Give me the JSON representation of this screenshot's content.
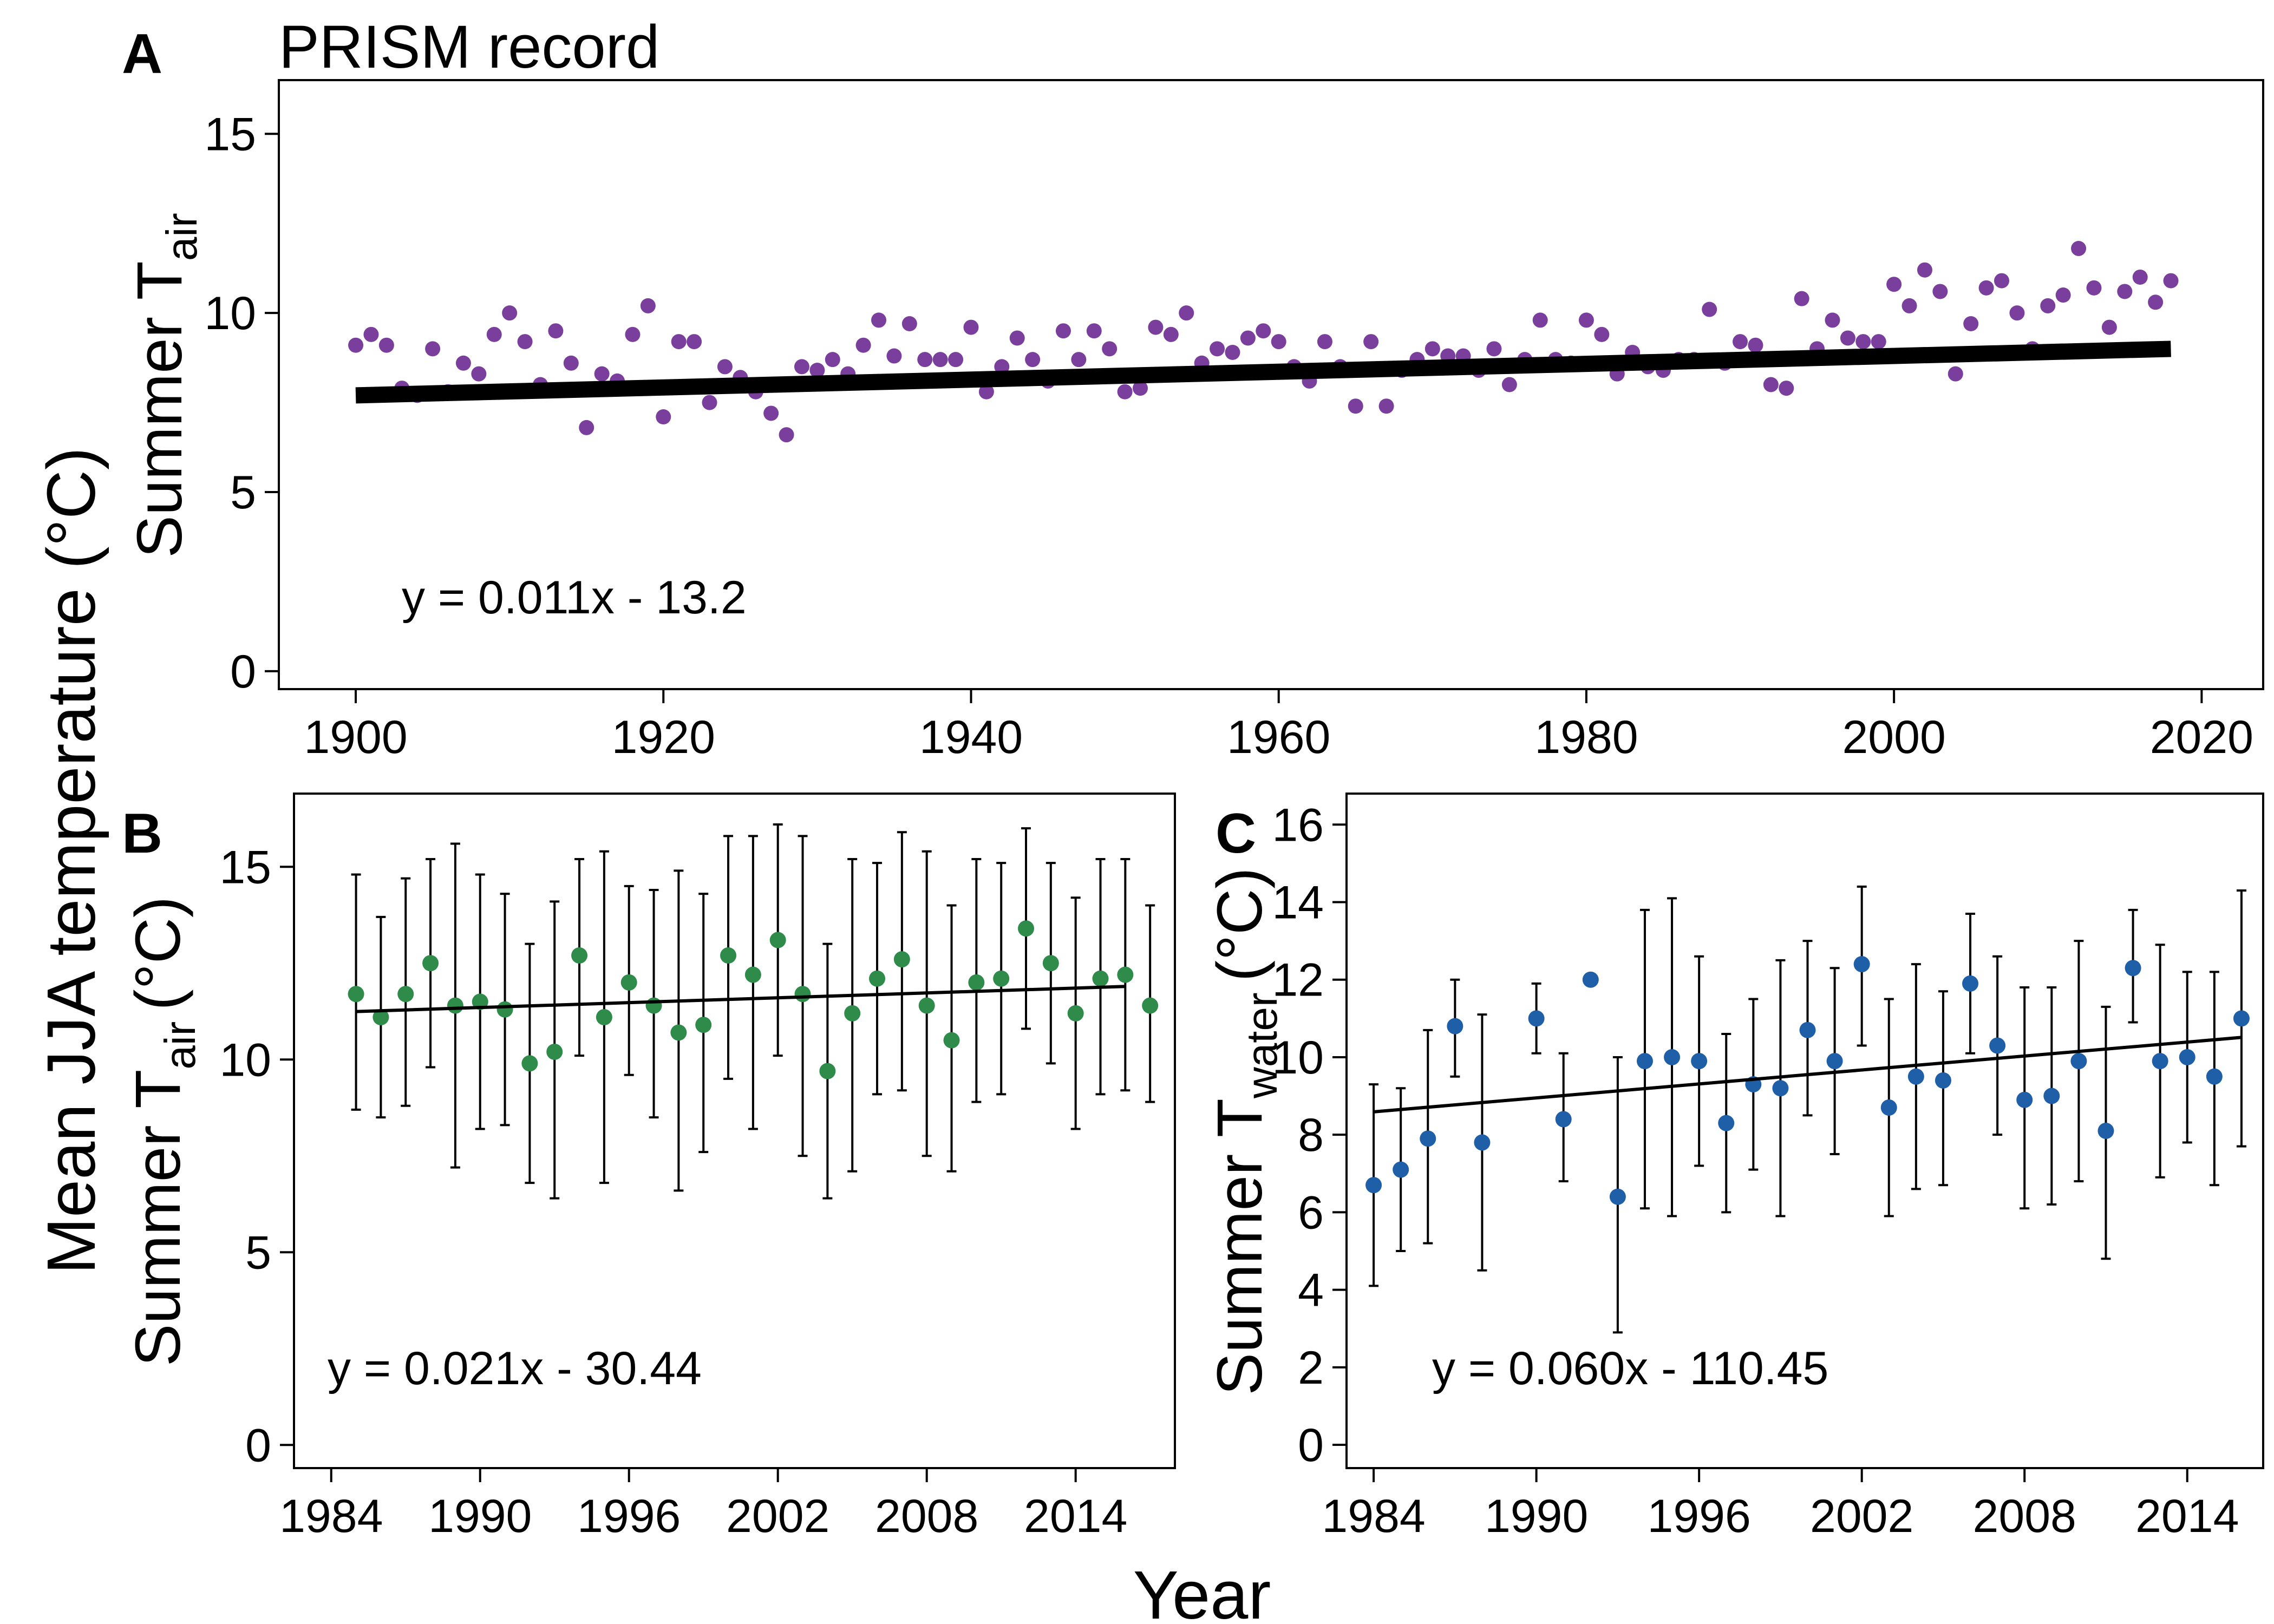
{
  "figure": {
    "global_ylabel": "Mean JJA temperature (°C)",
    "global_xlabel": "Year"
  },
  "chart_data": [
    {
      "panel": "A",
      "title": "PRISM record",
      "type": "scatter",
      "ylabel": {
        "main": "Summer T",
        "sub": "air"
      },
      "xlim": [
        1895,
        2024
      ],
      "ylim": [
        -0.5,
        16.5
      ],
      "xticks": [
        1900,
        1920,
        1940,
        1960,
        1980,
        2000,
        2020
      ],
      "yticks": [
        0,
        5,
        10,
        15
      ],
      "point_color": "#7a3e9d",
      "fit": {
        "slope": 0.011,
        "intercept": -13.2,
        "x_range": [
          1900,
          2018
        ],
        "color": "#000000"
      },
      "equation": "y = 0.011x - 13.2",
      "x": [
        1900,
        1901,
        1902,
        1903,
        1904,
        1905,
        1906,
        1907,
        1908,
        1909,
        1910,
        1911,
        1912,
        1913,
        1914,
        1915,
        1916,
        1917,
        1918,
        1919,
        1920,
        1921,
        1922,
        1923,
        1924,
        1925,
        1926,
        1927,
        1928,
        1929,
        1930,
        1931,
        1932,
        1933,
        1934,
        1935,
        1936,
        1937,
        1938,
        1939,
        1940,
        1941,
        1942,
        1943,
        1944,
        1945,
        1946,
        1947,
        1948,
        1949,
        1950,
        1951,
        1952,
        1953,
        1954,
        1955,
        1956,
        1957,
        1958,
        1959,
        1960,
        1961,
        1962,
        1963,
        1964,
        1965,
        1966,
        1967,
        1968,
        1969,
        1970,
        1971,
        1972,
        1973,
        1974,
        1975,
        1976,
        1977,
        1978,
        1979,
        1980,
        1981,
        1982,
        1983,
        1984,
        1985,
        1986,
        1987,
        1988,
        1989,
        1990,
        1991,
        1992,
        1993,
        1994,
        1995,
        1996,
        1997,
        1998,
        1999,
        2000,
        2001,
        2002,
        2003,
        2004,
        2005,
        2006,
        2007,
        2008,
        2009,
        2010,
        2011,
        2012,
        2013,
        2014,
        2015,
        2016,
        2017,
        2018
      ],
      "y": [
        9.1,
        9.4,
        9.1,
        7.9,
        7.7,
        9.0,
        7.8,
        8.6,
        8.3,
        9.4,
        10.0,
        9.2,
        8.0,
        9.5,
        8.6,
        6.8,
        8.3,
        8.1,
        9.4,
        10.2,
        7.1,
        9.2,
        9.2,
        7.5,
        8.5,
        8.2,
        7.8,
        7.2,
        6.6,
        8.5,
        8.4,
        8.7,
        8.3,
        9.1,
        9.8,
        8.8,
        9.7,
        8.7,
        8.7,
        8.7,
        9.6,
        7.8,
        8.5,
        9.3,
        8.7,
        8.1,
        9.5,
        8.7,
        9.5,
        9.0,
        7.8,
        7.9,
        9.6,
        9.4,
        10.0,
        8.6,
        9.0,
        8.9,
        9.3,
        9.5,
        9.2,
        8.5,
        8.1,
        9.2,
        8.5,
        7.4,
        9.2,
        7.4,
        8.4,
        8.7,
        9.0,
        8.8,
        8.8,
        8.4,
        9.0,
        8.0,
        8.7,
        9.8,
        8.7,
        8.6,
        9.8,
        9.4,
        8.3,
        8.9,
        8.5,
        8.4,
        8.7,
        8.7,
        10.1,
        8.6,
        9.2,
        9.1,
        8.0,
        7.9,
        10.4,
        9.0,
        9.8,
        9.3,
        9.2,
        9.2,
        10.8,
        10.2,
        11.2,
        10.6,
        8.3,
        9.7,
        10.7,
        10.9,
        10.0,
        9.0,
        10.2,
        10.5,
        11.8,
        10.7,
        9.6,
        10.6,
        11.0,
        10.3,
        10.9
      ]
    },
    {
      "panel": "B",
      "type": "scatter",
      "ylabel": {
        "main": "Summer T",
        "sub": "air",
        "unit": "(°C)"
      },
      "xlim": [
        1982.5,
        2018.0
      ],
      "ylim": [
        -0.6,
        16.9
      ],
      "xticks": [
        1984,
        1990,
        1996,
        2002,
        2008,
        2014
      ],
      "yticks": [
        0,
        5,
        10,
        15
      ],
      "point_color": "#2e8b4a",
      "fit": {
        "slope": 0.021,
        "intercept": -30.44,
        "x_range": [
          1985,
          2016
        ],
        "color": "#000000"
      },
      "equation": "y = 0.021x - 30.44",
      "x": [
        1985,
        1986,
        1987,
        1988,
        1989,
        1990,
        1991,
        1992,
        1993,
        1994,
        1995,
        1996,
        1997,
        1998,
        1999,
        2000,
        2001,
        2002,
        2003,
        2004,
        2005,
        2006,
        2007,
        2008,
        2009,
        2010,
        2011,
        2012,
        2013,
        2014,
        2015,
        2016,
        2017
      ],
      "y": [
        11.7,
        11.1,
        11.7,
        12.5,
        11.4,
        11.5,
        11.3,
        9.9,
        10.2,
        12.7,
        11.1,
        12.0,
        11.4,
        10.7,
        10.9,
        12.7,
        12.2,
        13.1,
        11.7,
        9.7,
        11.2,
        12.1,
        12.6,
        11.4,
        10.5,
        12.0,
        12.1,
        13.4,
        12.5,
        11.2,
        12.1,
        12.2,
        11.4
      ],
      "err_low": [
        8.7,
        8.5,
        8.8,
        9.8,
        7.2,
        8.2,
        8.3,
        6.8,
        6.4,
        10.1,
        6.8,
        9.6,
        8.5,
        6.6,
        7.6,
        9.5,
        8.2,
        10.1,
        7.5,
        6.4,
        7.1,
        9.1,
        9.2,
        7.5,
        7.1,
        8.9,
        9.1,
        10.8,
        9.9,
        8.2,
        9.1,
        9.2,
        8.9
      ],
      "err_high": [
        14.8,
        13.7,
        14.7,
        15.2,
        15.6,
        14.8,
        14.3,
        13.0,
        14.1,
        15.2,
        15.4,
        14.5,
        14.4,
        14.9,
        14.3,
        15.8,
        15.8,
        16.1,
        15.8,
        13.0,
        15.2,
        15.1,
        15.9,
        15.4,
        14.0,
        15.2,
        15.1,
        16.0,
        15.1,
        14.2,
        15.2,
        15.2,
        14.0
      ]
    },
    {
      "panel": "C",
      "type": "scatter",
      "ylabel": {
        "main": "Summer T",
        "sub": "water",
        "unit": "(°C)"
      },
      "xlim": [
        1983.0,
        2016.8
      ],
      "ylim": [
        -0.6,
        16.8
      ],
      "xticks": [
        1984,
        1990,
        1996,
        2002,
        2008,
        2014
      ],
      "yticks": [
        0,
        2,
        4,
        6,
        8,
        10,
        12,
        14,
        16
      ],
      "point_color": "#1f5fa8",
      "fit": {
        "slope": 0.06,
        "intercept": -110.45,
        "x_range": [
          1984,
          2016
        ],
        "color": "#000000"
      },
      "equation": "y = 0.060x - 110.45",
      "x": [
        1984,
        1985,
        1986,
        1987,
        1988,
        1990,
        1991,
        1992,
        1993,
        1994,
        1995,
        1996,
        1997,
        1998,
        1999,
        2000,
        2001,
        2002,
        2003,
        2004,
        2005,
        2006,
        2007,
        2008,
        2009,
        2010,
        2011,
        2012,
        2013,
        2014,
        2015,
        2016
      ],
      "y": [
        6.7,
        7.1,
        7.9,
        10.8,
        7.8,
        11.0,
        8.4,
        12.0,
        6.4,
        9.9,
        10.0,
        9.9,
        8.3,
        9.3,
        9.2,
        10.7,
        9.9,
        12.4,
        8.7,
        9.5,
        9.4,
        11.9,
        10.3,
        8.9,
        9.0,
        9.9,
        8.1,
        12.3,
        9.9,
        10.0,
        9.5,
        11.0
      ],
      "err_low": [
        4.1,
        5.0,
        5.2,
        9.5,
        4.5,
        10.1,
        6.8,
        12.0,
        2.9,
        6.1,
        5.9,
        7.2,
        6.0,
        7.1,
        5.9,
        8.5,
        7.5,
        10.3,
        5.9,
        6.6,
        6.7,
        10.1,
        8.0,
        6.1,
        6.2,
        6.8,
        4.8,
        10.9,
        6.9,
        7.8,
        6.7,
        7.7
      ],
      "err_high": [
        9.3,
        9.2,
        10.7,
        12.0,
        11.1,
        11.9,
        10.1,
        12.0,
        10.0,
        13.8,
        14.1,
        12.6,
        10.6,
        11.5,
        12.5,
        13.0,
        12.3,
        14.4,
        11.5,
        12.4,
        11.7,
        13.7,
        12.6,
        11.8,
        11.8,
        13.0,
        11.3,
        13.8,
        12.9,
        12.2,
        12.2,
        14.3
      ]
    }
  ]
}
